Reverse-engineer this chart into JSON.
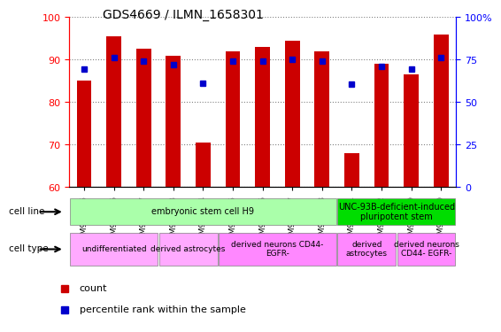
{
  "title": "GDS4669 / ILMN_1658301",
  "samples": [
    "GSM997555",
    "GSM997556",
    "GSM997557",
    "GSM997563",
    "GSM997564",
    "GSM997565",
    "GSM997566",
    "GSM997567",
    "GSM997568",
    "GSM997571",
    "GSM997572",
    "GSM997569",
    "GSM997570"
  ],
  "counts": [
    85,
    95.5,
    92.5,
    91,
    70.5,
    92,
    93,
    94.5,
    92,
    68,
    89,
    86.5,
    96
  ],
  "percentile_ranks": [
    69.5,
    76,
    74,
    72,
    61,
    74,
    74,
    75,
    74,
    60.5,
    71,
    69.5,
    76
  ],
  "ylim_left": [
    60,
    100
  ],
  "ylim_right": [
    0,
    100
  ],
  "yticks_left": [
    60,
    70,
    80,
    90,
    100
  ],
  "yticks_right": [
    0,
    25,
    50,
    75,
    100
  ],
  "ytick_right_labels": [
    "0",
    "25",
    "50",
    "75",
    "100%"
  ],
  "bar_color": "#cc0000",
  "dot_color": "#0000cc",
  "cell_line_regions": [
    {
      "label": "embryonic stem cell H9",
      "start": 0,
      "end": 9,
      "color": "#aaffaa"
    },
    {
      "label": "UNC-93B-deficient-induced\npluripotent stem",
      "start": 9,
      "end": 13,
      "color": "#00dd00"
    }
  ],
  "cell_type_regions": [
    {
      "label": "undifferentiated",
      "start": 0,
      "end": 3,
      "color": "#ffaaff"
    },
    {
      "label": "derived astrocytes",
      "start": 3,
      "end": 5,
      "color": "#ffaaff"
    },
    {
      "label": "derived neurons CD44-\nEGFR-",
      "start": 5,
      "end": 9,
      "color": "#ff88ff"
    },
    {
      "label": "derived\nastrocytes",
      "start": 9,
      "end": 11,
      "color": "#ff88ff"
    },
    {
      "label": "derived neurons\nCD44- EGFR-",
      "start": 11,
      "end": 13,
      "color": "#ff88ff"
    }
  ],
  "legend_count_color": "#cc0000",
  "legend_pct_color": "#0000cc",
  "bar_width": 0.5,
  "background_color": "#ffffff"
}
